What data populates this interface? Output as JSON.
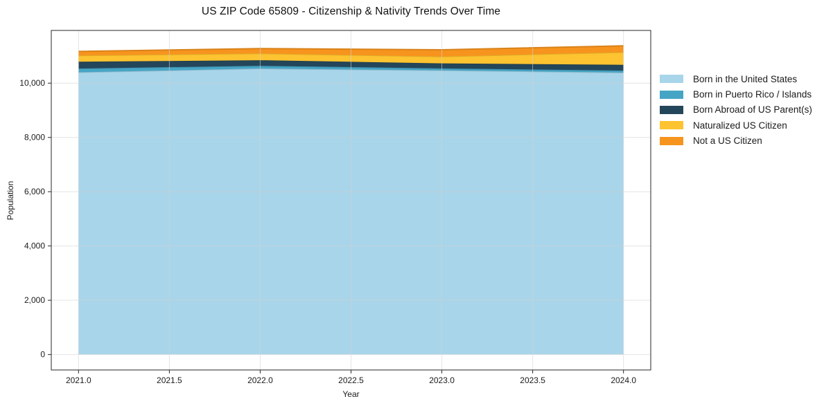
{
  "page": {
    "background": "#ffffff"
  },
  "chart_data": {
    "type": "area",
    "stacked": true,
    "title": "US ZIP Code 65809 - Citizenship & Nativity Trends Over Time",
    "xlabel": "Year",
    "ylabel": "Population",
    "x": [
      2021,
      2022,
      2023,
      2024
    ],
    "series": [
      {
        "name": "Born in the United States",
        "color": "#A8D5EA",
        "values": [
          10400,
          10540,
          10470,
          10390
        ]
      },
      {
        "name": "Born in Puerto Rico / Islands",
        "color": "#46A5C5",
        "values": [
          140,
          100,
          75,
          75
        ]
      },
      {
        "name": "Born Abroad of US Parent(s)",
        "color": "#24465A",
        "values": [
          250,
          205,
          185,
          210
        ]
      },
      {
        "name": "Naturalized US Citizen",
        "color": "#FDC330",
        "values": [
          230,
          250,
          250,
          465
        ]
      },
      {
        "name": "Not a US Citizen",
        "color": "#F7941E",
        "values": [
          150,
          180,
          250,
          235
        ]
      }
    ],
    "totals": [
      11170,
      11275,
      11230,
      11375
    ],
    "xlim": [
      2020.85,
      2024.15
    ],
    "ylim": [
      -569,
      11943
    ],
    "xticks": [
      2021.0,
      2021.5,
      2022.0,
      2022.5,
      2023.0,
      2023.5,
      2024.0
    ],
    "xtick_labels": [
      "2021.0",
      "2021.5",
      "2022.0",
      "2022.5",
      "2023.0",
      "2023.5",
      "2024.0"
    ],
    "yticks": [
      0,
      2000,
      4000,
      6000,
      8000,
      10000
    ],
    "ytick_labels": [
      "0",
      "2,000",
      "4,000",
      "6,000",
      "8,000",
      "10,000"
    ],
    "grid": true,
    "legend_position": "center-right-outside",
    "axis_colors": {
      "spine": "#262626",
      "tick_text": "#1a1a1a",
      "grid": "rgba(210,210,210,0.6)"
    }
  }
}
